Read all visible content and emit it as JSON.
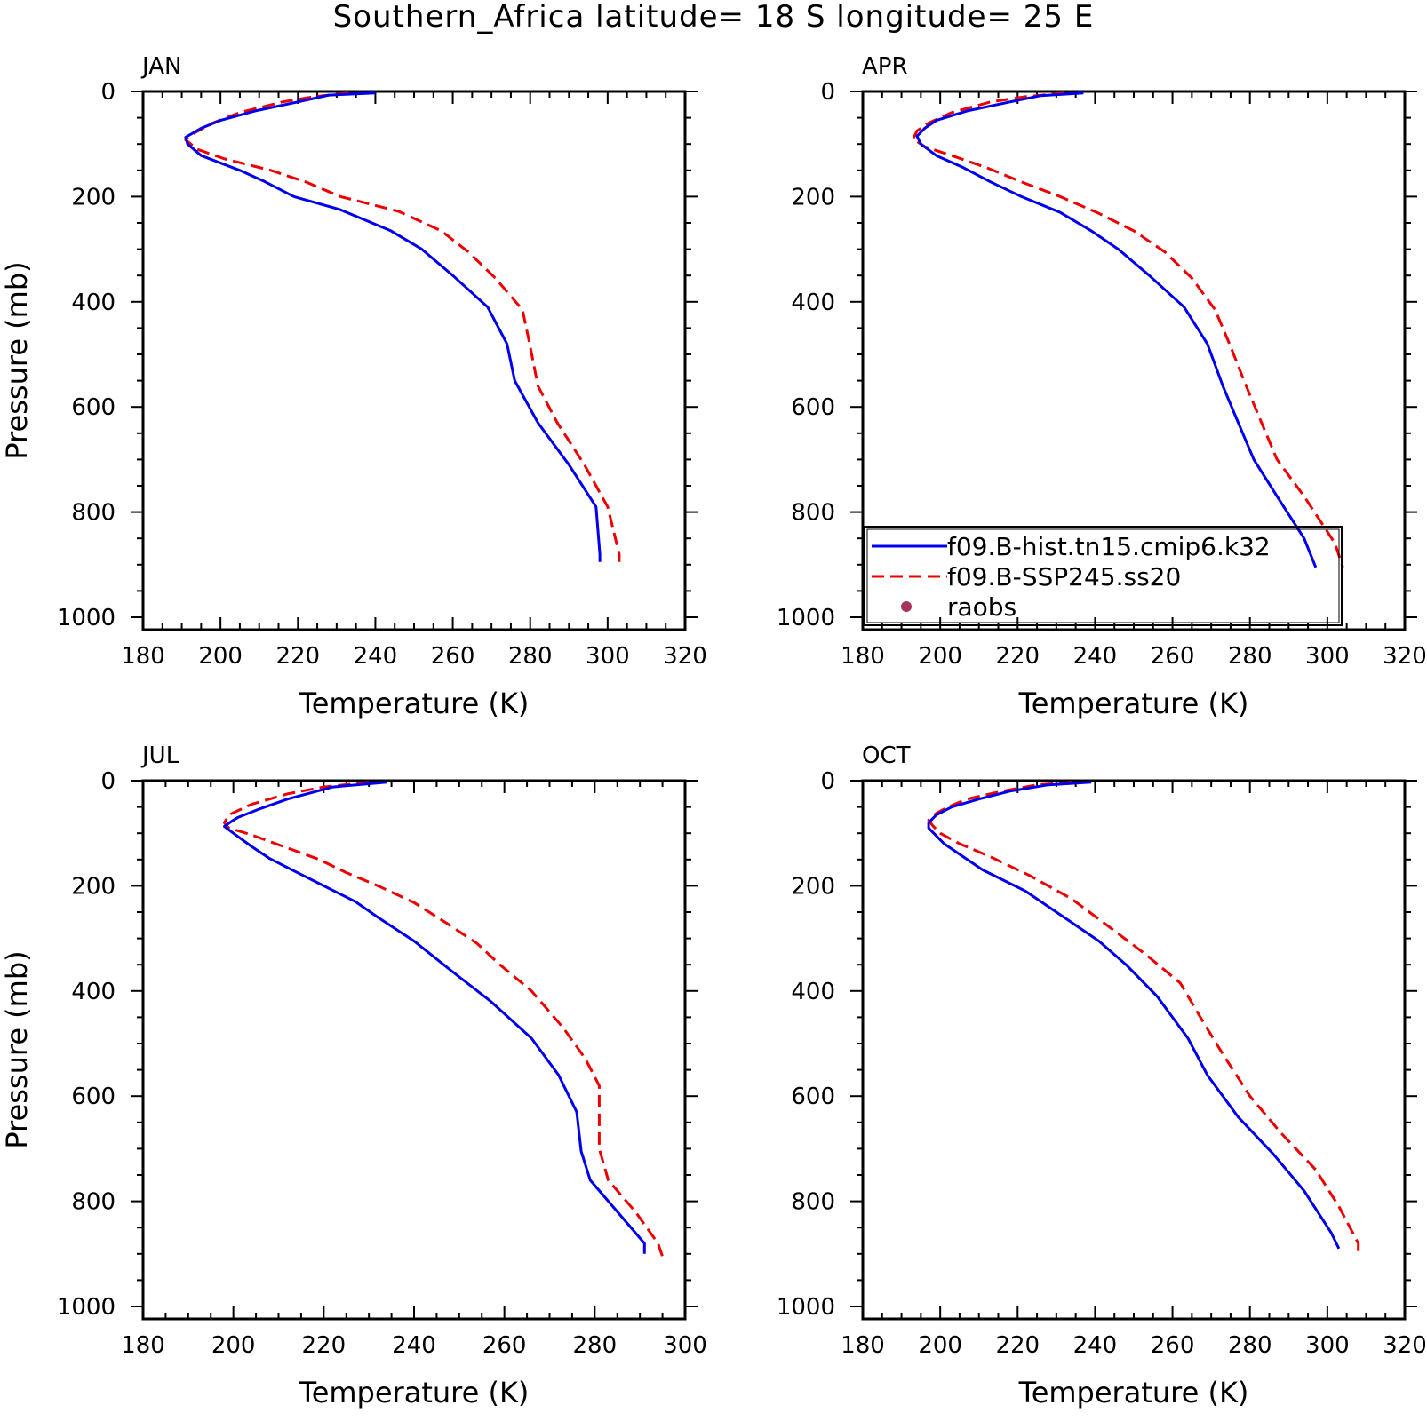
{
  "figure": {
    "title": "Southern_Africa  latitude= 18 S longitude= 25 E"
  },
  "legend": {
    "entries": [
      {
        "label": "f09.B-hist.tn15.cmip6.k32",
        "color": "#0000ee",
        "style": "solid"
      },
      {
        "label": "f09.B-SSP245.ss20",
        "color": "#ee0000",
        "style": "dashed"
      },
      {
        "label": "raobs",
        "color": "#a8325e",
        "style": "dot"
      }
    ]
  },
  "chart_data": [
    {
      "type": "line",
      "panel": "JAN",
      "xlabel": "Temperature (K)",
      "ylabel": "Pressure (mb)",
      "xlim": [
        180,
        320
      ],
      "ylim": [
        1000,
        0
      ],
      "xticks": [
        180,
        200,
        220,
        240,
        260,
        280,
        300,
        320
      ],
      "yticks": [
        0,
        200,
        400,
        600,
        800,
        1000
      ],
      "series": [
        {
          "name": "f09.B-hist.tn15.cmip6.k32",
          "color": "#0000ee",
          "dash": false,
          "points": [
            [
              240,
              3
            ],
            [
              228,
              7
            ],
            [
              220,
              20
            ],
            [
              209,
              37
            ],
            [
              200,
              55
            ],
            [
              195,
              70
            ],
            [
              191,
              87
            ],
            [
              191.5,
              100
            ],
            [
              195,
              122
            ],
            [
              205,
              150
            ],
            [
              211,
              170
            ],
            [
              219,
              200
            ],
            [
              231,
              225
            ],
            [
              244,
              265
            ],
            [
              252,
              300
            ],
            [
              260,
              350
            ],
            [
              269,
              410
            ],
            [
              274,
              480
            ],
            [
              276,
              550
            ],
            [
              282,
              630
            ],
            [
              290,
              710
            ],
            [
              297,
              790
            ],
            [
              298,
              880
            ],
            [
              298,
              895
            ]
          ]
        },
        {
          "name": "f09.B-SSP245.ss20",
          "color": "#ee0000",
          "dash": true,
          "points": [
            [
              233,
              3
            ],
            [
              224,
              10
            ],
            [
              216,
              20
            ],
            [
              205,
              40
            ],
            [
              198,
              60
            ],
            [
              193,
              80
            ],
            [
              191,
              92
            ],
            [
              194,
              110
            ],
            [
              201,
              128
            ],
            [
              213,
              150
            ],
            [
              222,
              172
            ],
            [
              231,
              200
            ],
            [
              246,
              228
            ],
            [
              257,
              265
            ],
            [
              264,
              305
            ],
            [
              271,
              355
            ],
            [
              278,
              415
            ],
            [
              280,
              485
            ],
            [
              282,
              560
            ],
            [
              287,
              630
            ],
            [
              294,
              710
            ],
            [
              300,
              790
            ],
            [
              303,
              880
            ],
            [
              303,
              895
            ]
          ]
        }
      ]
    },
    {
      "type": "line",
      "panel": "APR",
      "xlabel": "Temperature (K)",
      "ylabel": "",
      "xlim": [
        180,
        320
      ],
      "ylim": [
        1000,
        0
      ],
      "xticks": [
        180,
        200,
        220,
        240,
        260,
        280,
        300,
        320
      ],
      "yticks": [
        0,
        200,
        400,
        600,
        800,
        1000
      ],
      "series": [
        {
          "name": "f09.B-hist.tn15.cmip6.k32",
          "color": "#0000ee",
          "dash": false,
          "points": [
            [
              237,
              3
            ],
            [
              226,
              8
            ],
            [
              218,
              20
            ],
            [
              207,
              37
            ],
            [
              199,
              55
            ],
            [
              196,
              70
            ],
            [
              194,
              85
            ],
            [
              195,
              100
            ],
            [
              199,
              122
            ],
            [
              206,
              145
            ],
            [
              213,
              172
            ],
            [
              221,
              200
            ],
            [
              231,
              230
            ],
            [
              239,
              265
            ],
            [
              246,
              300
            ],
            [
              254,
              350
            ],
            [
              263,
              410
            ],
            [
              269,
              480
            ],
            [
              273,
              560
            ],
            [
              277,
              630
            ],
            [
              281,
              700
            ],
            [
              287,
              770
            ],
            [
              294,
              850
            ],
            [
              297,
              905
            ]
          ]
        },
        {
          "name": "f09.B-SSP245.ss20",
          "color": "#ee0000",
          "dash": true,
          "points": [
            [
              232,
              3
            ],
            [
              222,
              10
            ],
            [
              213,
              20
            ],
            [
              203,
              40
            ],
            [
              197,
              60
            ],
            [
              194,
              75
            ],
            [
              193,
              90
            ],
            [
              196,
              105
            ],
            [
              203,
              122
            ],
            [
              212,
              145
            ],
            [
              221,
              172
            ],
            [
              231,
              200
            ],
            [
              241,
              232
            ],
            [
              250,
              265
            ],
            [
              258,
              305
            ],
            [
              265,
              355
            ],
            [
              271,
              415
            ],
            [
              275,
              485
            ],
            [
              279,
              560
            ],
            [
              283,
              630
            ],
            [
              287,
              700
            ],
            [
              294,
              770
            ],
            [
              302,
              860
            ],
            [
              304,
              905
            ]
          ]
        }
      ]
    },
    {
      "type": "line",
      "panel": "JUL",
      "xlabel": "Temperature (K)",
      "ylabel": "Pressure (mb)",
      "xlim": [
        180,
        300
      ],
      "ylim": [
        1000,
        0
      ],
      "xticks": [
        180,
        200,
        220,
        240,
        260,
        280,
        300
      ],
      "yticks": [
        0,
        200,
        400,
        600,
        800,
        1000
      ],
      "series": [
        {
          "name": "f09.B-hist.tn15.cmip6.k32",
          "color": "#0000ee",
          "dash": false,
          "points": [
            [
              234,
              3
            ],
            [
              222,
              12
            ],
            [
              212,
              35
            ],
            [
              206,
              53
            ],
            [
              201,
              70
            ],
            [
              200,
              75
            ],
            [
              198,
              87
            ],
            [
              200,
              100
            ],
            [
              204,
              125
            ],
            [
              208,
              148
            ],
            [
              213,
              170
            ],
            [
              220,
              200
            ],
            [
              227,
              230
            ],
            [
              232,
              260
            ],
            [
              240,
              305
            ],
            [
              248,
              360
            ],
            [
              257,
              420
            ],
            [
              266,
              490
            ],
            [
              272,
              560
            ],
            [
              276,
              630
            ],
            [
              277,
              705
            ],
            [
              279,
              760
            ],
            [
              285,
              820
            ],
            [
              291,
              880
            ],
            [
              291,
              900
            ]
          ]
        },
        {
          "name": "f09.B-SSP245.ss20",
          "color": "#ee0000",
          "dash": true,
          "points": [
            [
              230,
              3
            ],
            [
              220,
              12
            ],
            [
              212,
              25
            ],
            [
              204,
              45
            ],
            [
              199,
              65
            ],
            [
              198,
              80
            ],
            [
              199,
              90
            ],
            [
              204,
              103
            ],
            [
              211,
              125
            ],
            [
              219,
              150
            ],
            [
              225,
              175
            ],
            [
              232,
              200
            ],
            [
              240,
              232
            ],
            [
              247,
              270
            ],
            [
              254,
              310
            ],
            [
              259,
              350
            ],
            [
              266,
              400
            ],
            [
              273,
              470
            ],
            [
              278,
              530
            ],
            [
              281,
              580
            ],
            [
              281,
              640
            ],
            [
              281,
              700
            ],
            [
              283,
              760
            ],
            [
              289,
              820
            ],
            [
              294,
              880
            ],
            [
              295,
              905
            ]
          ]
        }
      ]
    },
    {
      "type": "line",
      "panel": "OCT",
      "xlabel": "Temperature (K)",
      "ylabel": "",
      "xlim": [
        180,
        320
      ],
      "ylim": [
        1000,
        0
      ],
      "xticks": [
        180,
        200,
        220,
        240,
        260,
        280,
        300,
        320
      ],
      "yticks": [
        0,
        200,
        400,
        600,
        800,
        1000
      ],
      "series": [
        {
          "name": "f09.B-hist.tn15.cmip6.k32",
          "color": "#0000ee",
          "dash": false,
          "points": [
            [
              239,
              3
            ],
            [
              228,
              8
            ],
            [
              218,
              20
            ],
            [
              210,
              35
            ],
            [
              203,
              50
            ],
            [
              199,
              65
            ],
            [
              197,
              80
            ],
            [
              197,
              90
            ],
            [
              199,
              105
            ],
            [
              201,
              120
            ],
            [
              205,
              140
            ],
            [
              211,
              170
            ],
            [
              222,
              210
            ],
            [
              232,
              260
            ],
            [
              241,
              305
            ],
            [
              248,
              350
            ],
            [
              256,
              410
            ],
            [
              264,
              490
            ],
            [
              269,
              560
            ],
            [
              277,
              640
            ],
            [
              286,
              710
            ],
            [
              294,
              780
            ],
            [
              301,
              860
            ],
            [
              303,
              890
            ]
          ]
        },
        {
          "name": "f09.B-SSP245.ss20",
          "color": "#ee0000",
          "dash": true,
          "points": [
            [
              234,
              3
            ],
            [
              225,
              8
            ],
            [
              216,
              20
            ],
            [
              207,
              35
            ],
            [
              202,
              50
            ],
            [
              199,
              62
            ],
            [
              197,
              75
            ],
            [
              198,
              85
            ],
            [
              200,
              100
            ],
            [
              205,
              120
            ],
            [
              213,
              145
            ],
            [
              223,
              180
            ],
            [
              234,
              225
            ],
            [
              244,
              280
            ],
            [
              253,
              330
            ],
            [
              262,
              385
            ],
            [
              268,
              460
            ],
            [
              273,
              520
            ],
            [
              280,
              600
            ],
            [
              288,
              670
            ],
            [
              297,
              740
            ],
            [
              303,
              810
            ],
            [
              308,
              880
            ],
            [
              308,
              895
            ]
          ]
        }
      ]
    }
  ]
}
